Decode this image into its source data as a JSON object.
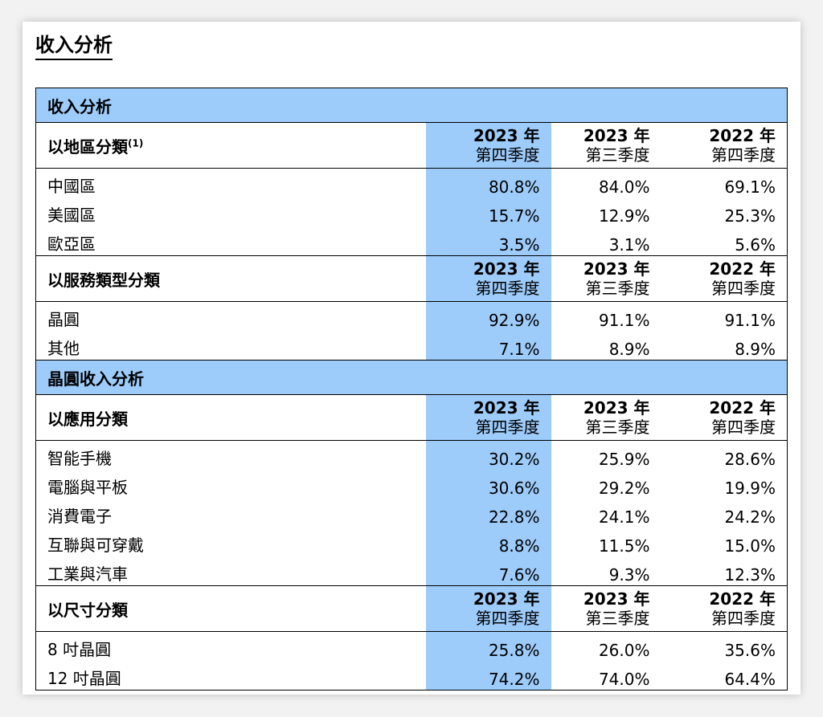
{
  "page_title": "收入分析",
  "table": {
    "title": "收入分析",
    "column_headers": [
      {
        "year": "2023 年",
        "quarter": "第四季度"
      },
      {
        "year": "2023 年",
        "quarter": "第三季度"
      },
      {
        "year": "2022 年",
        "quarter": "第四季度"
      }
    ],
    "region": {
      "label": "以地區分類",
      "footnote": "(1)",
      "rows": [
        {
          "name": "中國區",
          "values": [
            "80.8%",
            "84.0%",
            "69.1%"
          ]
        },
        {
          "name": "美國區",
          "values": [
            "15.7%",
            "12.9%",
            "25.3%"
          ]
        },
        {
          "name": "歐亞區",
          "values": [
            "3.5%",
            "3.1%",
            "5.6%"
          ]
        }
      ]
    },
    "service": {
      "label": "以服務類型分類",
      "rows": [
        {
          "name": "晶圓",
          "values": [
            "92.9%",
            "91.1%",
            "91.1%"
          ]
        },
        {
          "name": "其他",
          "values": [
            "7.1%",
            "8.9%",
            "8.9%"
          ]
        }
      ]
    },
    "wafer_section_title": "晶圓收入分析",
    "application": {
      "label": "以應用分類",
      "rows": [
        {
          "name": "智能手機",
          "values": [
            "30.2%",
            "25.9%",
            "28.6%"
          ]
        },
        {
          "name": "電腦與平板",
          "values": [
            "30.6%",
            "29.2%",
            "19.9%"
          ]
        },
        {
          "name": "消費電子",
          "values": [
            "22.8%",
            "24.1%",
            "24.2%"
          ]
        },
        {
          "name": "互聯與可穿戴",
          "values": [
            "8.8%",
            "11.5%",
            "15.0%"
          ]
        },
        {
          "name": "工業與汽車",
          "values": [
            "7.6%",
            "9.3%",
            "12.3%"
          ]
        }
      ]
    },
    "size": {
      "label": "以尺寸分類",
      "rows": [
        {
          "name": "8 吋晶圓",
          "values": [
            "25.8%",
            "26.0%",
            "35.6%"
          ]
        },
        {
          "name": "12 吋晶圓",
          "values": [
            "74.2%",
            "74.0%",
            "64.4%"
          ]
        }
      ]
    }
  },
  "colors": {
    "highlight": "#9dcbfa",
    "border": "#000000"
  }
}
